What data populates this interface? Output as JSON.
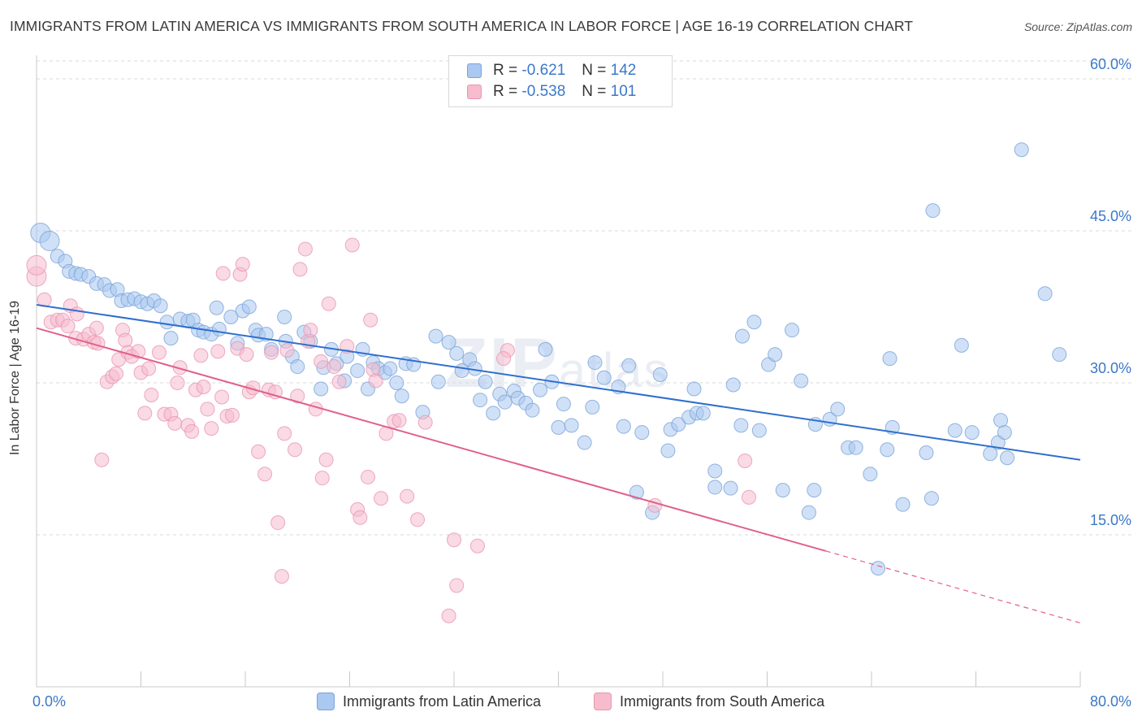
{
  "title": "IMMIGRANTS FROM LATIN AMERICA VS IMMIGRANTS FROM SOUTH AMERICA IN LABOR FORCE | AGE 16-19 CORRELATION CHART",
  "source": "Source: ZipAtlas.com",
  "watermark": {
    "bold": "ZIP",
    "light": "atlas"
  },
  "legend": {
    "blue": {
      "r_label": "R =",
      "r_value": "-0.621",
      "n_label": "N =",
      "n_value": "142"
    },
    "pink": {
      "r_label": "R =",
      "r_value": "-0.538",
      "n_label": "N =",
      "n_value": "101"
    }
  },
  "colors": {
    "blue_fill": "#aac8f0",
    "blue_stroke": "#7aa3d8",
    "blue_line": "#2f6fce",
    "pink_fill": "#f6bccd",
    "pink_stroke": "#e896b0",
    "pink_line": "#e0608a",
    "axis_label": "#3a78c9",
    "grid": "#d9d9d9"
  },
  "chart_data": {
    "type": "scatter",
    "title": "IMMIGRANTS FROM LATIN AMERICA VS IMMIGRANTS FROM SOUTH AMERICA IN LABOR FORCE | AGE 16-19 CORRELATION CHART",
    "xlabel": "",
    "ylabel": "In Labor Force | Age 16-19",
    "xlim": [
      0,
      80
    ],
    "ylim": [
      0,
      62.5
    ],
    "x_tick_labels": [
      "0.0%",
      "80.0%"
    ],
    "y_ticks": [
      15,
      30,
      45,
      60
    ],
    "y_tick_labels": [
      "15.0%",
      "30.0%",
      "45.0%",
      "60.0%"
    ],
    "grid": true,
    "legend_position": "top-center",
    "series": [
      {
        "name": "Immigrants from Latin America",
        "color": "#aac8f0",
        "trend": {
          "x0": 0,
          "y0": 37.7,
          "x1": 80,
          "y1": 22.4
        },
        "points": [
          [
            0.3,
            44.8
          ],
          [
            1,
            44
          ],
          [
            1.6,
            42.5
          ],
          [
            2.2,
            42
          ],
          [
            2.5,
            41
          ],
          [
            3,
            40.8
          ],
          [
            3.4,
            40.7
          ],
          [
            4,
            40.5
          ],
          [
            4.6,
            39.8
          ],
          [
            5.2,
            39.7
          ],
          [
            5.6,
            39.1
          ],
          [
            6.2,
            39.2
          ],
          [
            6.5,
            38.1
          ],
          [
            7,
            38.2
          ],
          [
            7.5,
            38.3
          ],
          [
            8,
            38
          ],
          [
            8.5,
            37.8
          ],
          [
            9,
            38.1
          ],
          [
            9.5,
            37.6
          ],
          [
            10,
            36
          ],
          [
            10.3,
            34.4
          ],
          [
            11,
            36.3
          ],
          [
            11.6,
            36.1
          ],
          [
            12,
            36.2
          ],
          [
            12.4,
            35.2
          ],
          [
            12.8,
            35
          ],
          [
            13.4,
            34.8
          ],
          [
            13.8,
            37.4
          ],
          [
            14,
            35.3
          ],
          [
            14.9,
            36.5
          ],
          [
            15.4,
            33.9
          ],
          [
            15.8,
            37.1
          ],
          [
            16.3,
            37.5
          ],
          [
            16.8,
            35.2
          ],
          [
            17,
            34.7
          ],
          [
            17.6,
            34.8
          ],
          [
            18,
            33.3
          ],
          [
            19,
            36.5
          ],
          [
            19.1,
            34.1
          ],
          [
            19.6,
            32.6
          ],
          [
            20,
            31.6
          ],
          [
            20.5,
            35
          ],
          [
            21,
            34.1
          ],
          [
            21.8,
            29.4
          ],
          [
            22,
            31.5
          ],
          [
            22.6,
            33.3
          ],
          [
            23,
            31.9
          ],
          [
            23.6,
            30.2
          ],
          [
            23.8,
            32.6
          ],
          [
            24.6,
            31.2
          ],
          [
            25,
            33.3
          ],
          [
            25.4,
            29.4
          ],
          [
            25.8,
            32
          ],
          [
            26.2,
            31.4
          ],
          [
            26.7,
            31
          ],
          [
            27.1,
            31.4
          ],
          [
            27.6,
            30
          ],
          [
            28,
            28.7
          ],
          [
            28.3,
            31.9
          ],
          [
            28.9,
            31.8
          ],
          [
            29.6,
            27.1
          ],
          [
            30.6,
            34.6
          ],
          [
            30.8,
            30.1
          ],
          [
            31.6,
            34
          ],
          [
            32.2,
            32.9
          ],
          [
            32.6,
            31.2
          ],
          [
            33.2,
            32.3
          ],
          [
            33.6,
            31.4
          ],
          [
            34,
            28.3
          ],
          [
            34.4,
            30.1
          ],
          [
            35,
            27
          ],
          [
            35.5,
            28.9
          ],
          [
            35.9,
            28.1
          ],
          [
            36.6,
            29.2
          ],
          [
            36.9,
            28.5
          ],
          [
            37.5,
            28
          ],
          [
            38,
            27.3
          ],
          [
            38.6,
            29.3
          ],
          [
            39,
            33.3
          ],
          [
            39.5,
            30.1
          ],
          [
            40,
            25.6
          ],
          [
            40.4,
            27.9
          ],
          [
            41,
            25.8
          ],
          [
            42,
            24.1
          ],
          [
            42.6,
            27.6
          ],
          [
            42.8,
            32
          ],
          [
            43.5,
            30.5
          ],
          [
            44.6,
            29.6
          ],
          [
            45,
            25.7
          ],
          [
            45.4,
            31.7
          ],
          [
            46,
            19.2
          ],
          [
            46.4,
            25.1
          ],
          [
            47.2,
            17.2
          ],
          [
            47.8,
            30.8
          ],
          [
            48.4,
            23.3
          ],
          [
            48.6,
            25.4
          ],
          [
            49.2,
            25.9
          ],
          [
            50,
            26.6
          ],
          [
            50.4,
            29.4
          ],
          [
            50.6,
            27
          ],
          [
            51.1,
            27
          ],
          [
            52,
            21.3
          ],
          [
            52,
            19.7
          ],
          [
            53.2,
            19.6
          ],
          [
            53.4,
            29.8
          ],
          [
            54,
            25.8
          ],
          [
            54.1,
            34.6
          ],
          [
            55,
            36
          ],
          [
            55.4,
            25.3
          ],
          [
            56.1,
            31.8
          ],
          [
            56.6,
            32.8
          ],
          [
            57.2,
            19.4
          ],
          [
            57.9,
            35.2
          ],
          [
            58.6,
            30.2
          ],
          [
            59.2,
            17.2
          ],
          [
            59.7,
            25.9
          ],
          [
            59.6,
            19.4
          ],
          [
            60.8,
            26.4
          ],
          [
            61.4,
            27.4
          ],
          [
            62.2,
            23.6
          ],
          [
            62.8,
            23.6
          ],
          [
            63.9,
            21
          ],
          [
            65.2,
            23.4
          ],
          [
            65.6,
            25.6
          ],
          [
            66.4,
            18
          ],
          [
            68.2,
            23.1
          ],
          [
            68.6,
            18.6
          ],
          [
            68.7,
            47
          ],
          [
            70.4,
            25.3
          ],
          [
            70.9,
            33.7
          ],
          [
            71.7,
            25.1
          ],
          [
            73.1,
            23
          ],
          [
            73.7,
            24.1
          ],
          [
            73.9,
            26.3
          ],
          [
            74.2,
            25.1
          ],
          [
            74.4,
            22.6
          ],
          [
            75.5,
            53
          ],
          [
            77.3,
            38.8
          ],
          [
            78.4,
            32.8
          ],
          [
            64.5,
            11.7
          ],
          [
            65.4,
            32.4
          ]
        ]
      },
      {
        "name": "Immigrants from South America",
        "color": "#f6bccd",
        "trend": {
          "x0": 0,
          "y0": 35.4,
          "x1": 60.5,
          "y1": 13.4
        },
        "trend_dashed": {
          "x0": 60.5,
          "y0": 13.4,
          "x1": 80,
          "y1": 6.3
        },
        "points": [
          [
            0,
            40.5
          ],
          [
            0,
            41.6
          ],
          [
            0.6,
            38.2
          ],
          [
            1.1,
            36
          ],
          [
            1.6,
            36.2
          ],
          [
            2,
            36.2
          ],
          [
            2.4,
            35.6
          ],
          [
            2.6,
            37.6
          ],
          [
            3,
            34.4
          ],
          [
            3.1,
            36.8
          ],
          [
            3.6,
            34.3
          ],
          [
            4,
            34.8
          ],
          [
            4.4,
            34
          ],
          [
            4.6,
            35.4
          ],
          [
            4.7,
            33.9
          ],
          [
            5,
            22.4
          ],
          [
            5.4,
            30.1
          ],
          [
            5.8,
            30.6
          ],
          [
            6.1,
            30.9
          ],
          [
            6.3,
            32.3
          ],
          [
            6.6,
            35.2
          ],
          [
            6.8,
            34.2
          ],
          [
            7,
            33
          ],
          [
            7.3,
            32.6
          ],
          [
            7.8,
            33.1
          ],
          [
            8,
            31
          ],
          [
            8.3,
            27
          ],
          [
            8.6,
            31.4
          ],
          [
            8.8,
            28.8
          ],
          [
            9.4,
            33
          ],
          [
            9.8,
            26.9
          ],
          [
            10.3,
            26.9
          ],
          [
            10.6,
            26
          ],
          [
            10.8,
            30
          ],
          [
            11,
            31.5
          ],
          [
            11.6,
            25.8
          ],
          [
            11.9,
            25.2
          ],
          [
            12.2,
            29.3
          ],
          [
            12.6,
            32.7
          ],
          [
            12.8,
            29.6
          ],
          [
            13.1,
            27.4
          ],
          [
            13.4,
            25.5
          ],
          [
            13.9,
            33.1
          ],
          [
            14.2,
            28.6
          ],
          [
            14.3,
            40.8
          ],
          [
            14.6,
            26.7
          ],
          [
            15,
            26.8
          ],
          [
            15.4,
            33.4
          ],
          [
            15.6,
            40.7
          ],
          [
            15.8,
            41.7
          ],
          [
            16.1,
            32.8
          ],
          [
            16.3,
            29.1
          ],
          [
            16.6,
            29.5
          ],
          [
            17,
            23.2
          ],
          [
            17.5,
            21
          ],
          [
            17.8,
            29.3
          ],
          [
            18,
            33
          ],
          [
            18.3,
            29.1
          ],
          [
            18.5,
            16.2
          ],
          [
            18.8,
            10.9
          ],
          [
            19,
            25
          ],
          [
            19.2,
            33.2
          ],
          [
            19.8,
            23.4
          ],
          [
            20,
            28.7
          ],
          [
            20.2,
            41.2
          ],
          [
            20.6,
            43.2
          ],
          [
            20.8,
            34.1
          ],
          [
            21,
            35.2
          ],
          [
            21.4,
            27.4
          ],
          [
            21.8,
            32.1
          ],
          [
            21.9,
            20.6
          ],
          [
            22.2,
            22.4
          ],
          [
            22.4,
            37.8
          ],
          [
            22.8,
            31.6
          ],
          [
            23.2,
            30.1
          ],
          [
            23.8,
            33.6
          ],
          [
            24.2,
            43.6
          ],
          [
            24.6,
            17.5
          ],
          [
            24.8,
            16.7
          ],
          [
            25.4,
            20.7
          ],
          [
            25.6,
            36.2
          ],
          [
            25.8,
            31.3
          ],
          [
            26,
            30.2
          ],
          [
            26.4,
            18.6
          ],
          [
            26.8,
            25
          ],
          [
            27.4,
            26.2
          ],
          [
            27.8,
            26.3
          ],
          [
            28.4,
            18.8
          ],
          [
            29.2,
            16.5
          ],
          [
            29.8,
            26.1
          ],
          [
            32,
            14.5
          ],
          [
            32.2,
            10
          ],
          [
            33.8,
            13.9
          ],
          [
            31.6,
            7
          ],
          [
            36.1,
            33.2
          ],
          [
            35.8,
            32.4
          ],
          [
            47.4,
            17.9
          ],
          [
            54.3,
            22.3
          ],
          [
            54.6,
            18.7
          ]
        ]
      }
    ]
  }
}
